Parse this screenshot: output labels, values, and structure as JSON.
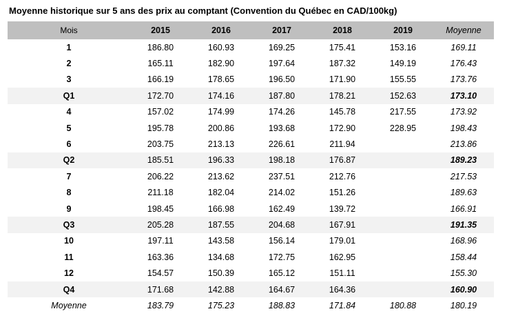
{
  "title": "Moyenne historique sur 5 ans des prix au comptant (Convention du Québec en CAD/100kg)",
  "table": {
    "columns": [
      "Mois",
      "2015",
      "2016",
      "2017",
      "2018",
      "2019",
      "Moyenne"
    ],
    "rows": [
      {
        "label": "1",
        "type": "month",
        "values": [
          "186.80",
          "160.93",
          "169.25",
          "175.41",
          "153.16",
          "169.11"
        ]
      },
      {
        "label": "2",
        "type": "month",
        "values": [
          "165.11",
          "182.90",
          "197.64",
          "187.32",
          "149.19",
          "176.43"
        ]
      },
      {
        "label": "3",
        "type": "month",
        "values": [
          "166.19",
          "178.65",
          "196.50",
          "171.90",
          "155.55",
          "173.76"
        ]
      },
      {
        "label": "Q1",
        "type": "quarter",
        "values": [
          "172.70",
          "174.16",
          "187.80",
          "178.21",
          "152.63",
          "173.10"
        ]
      },
      {
        "label": "4",
        "type": "month",
        "values": [
          "157.02",
          "174.99",
          "174.26",
          "145.78",
          "217.55",
          "173.92"
        ]
      },
      {
        "label": "5",
        "type": "month",
        "values": [
          "195.78",
          "200.86",
          "193.68",
          "172.90",
          "228.95",
          "198.43"
        ]
      },
      {
        "label": "6",
        "type": "month",
        "values": [
          "203.75",
          "213.13",
          "226.61",
          "211.94",
          "",
          "213.86"
        ]
      },
      {
        "label": "Q2",
        "type": "quarter",
        "values": [
          "185.51",
          "196.33",
          "198.18",
          "176.87",
          "",
          "189.23"
        ]
      },
      {
        "label": "7",
        "type": "month",
        "values": [
          "206.22",
          "213.62",
          "237.51",
          "212.76",
          "",
          "217.53"
        ]
      },
      {
        "label": "8",
        "type": "month",
        "values": [
          "211.18",
          "182.04",
          "214.02",
          "151.26",
          "",
          "189.63"
        ]
      },
      {
        "label": "9",
        "type": "month",
        "values": [
          "198.45",
          "166.98",
          "162.49",
          "139.72",
          "",
          "166.91"
        ]
      },
      {
        "label": "Q3",
        "type": "quarter",
        "values": [
          "205.28",
          "187.55",
          "204.68",
          "167.91",
          "",
          "191.35"
        ]
      },
      {
        "label": "10",
        "type": "month",
        "values": [
          "197.11",
          "143.58",
          "156.14",
          "179.01",
          "",
          "168.96"
        ]
      },
      {
        "label": "11",
        "type": "month",
        "values": [
          "163.36",
          "134.68",
          "172.75",
          "162.95",
          "",
          "158.44"
        ]
      },
      {
        "label": "12",
        "type": "month",
        "values": [
          "154.57",
          "150.39",
          "165.12",
          "151.11",
          "",
          "155.30"
        ]
      },
      {
        "label": "Q4",
        "type": "quarter",
        "values": [
          "171.68",
          "142.88",
          "164.67",
          "164.36",
          "",
          "160.90"
        ]
      },
      {
        "label": "Moyenne",
        "type": "average",
        "values": [
          "183.79",
          "175.23",
          "188.83",
          "171.84",
          "180.88",
          "180.19"
        ]
      }
    ]
  },
  "colors": {
    "header_bg": "#bfbfbf",
    "quarter_row_bg": "#f2f2f2",
    "text": "#000000",
    "background": "#ffffff"
  }
}
